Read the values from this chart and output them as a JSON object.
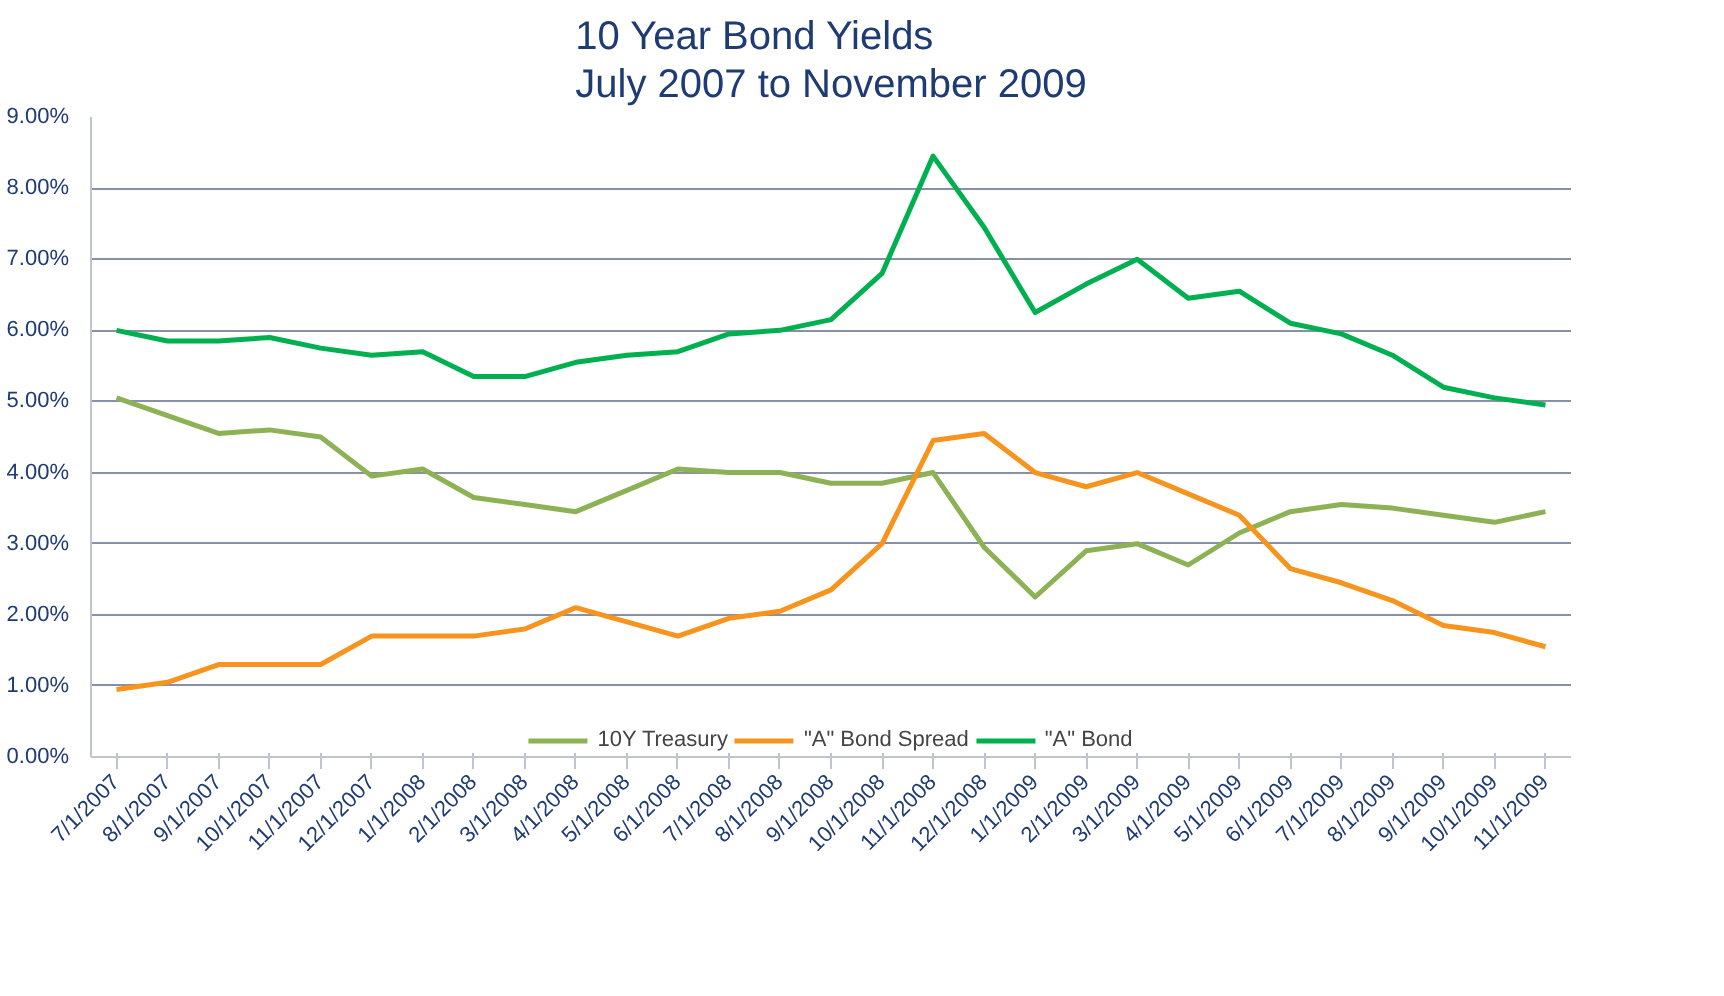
{
  "chart_data": {
    "type": "line",
    "title": "10 Year Bond Yields\nJuly 2007 to November 2009",
    "categories": [
      "7/1/2007",
      "8/1/2007",
      "9/1/2007",
      "10/1/2007",
      "11/1/2007",
      "12/1/2007",
      "1/1/2008",
      "2/1/2008",
      "3/1/2008",
      "4/1/2008",
      "5/1/2008",
      "6/1/2008",
      "7/1/2008",
      "8/1/2008",
      "9/1/2008",
      "10/1/2008",
      "11/1/2008",
      "12/1/2008",
      "1/1/2009",
      "2/1/2009",
      "3/1/2009",
      "4/1/2009",
      "5/1/2009",
      "6/1/2009",
      "7/1/2009",
      "8/1/2009",
      "9/1/2009",
      "10/1/2009",
      "11/1/2009"
    ],
    "series": [
      {
        "name": "10Y Treasury",
        "color": "#8db255",
        "values": [
          5.05,
          4.8,
          4.55,
          4.6,
          4.5,
          3.95,
          4.05,
          3.65,
          3.55,
          3.45,
          3.75,
          4.05,
          4.0,
          4.0,
          3.85,
          3.85,
          4.0,
          2.95,
          2.25,
          2.9,
          3.0,
          2.7,
          3.15,
          3.45,
          3.55,
          3.5,
          3.4,
          3.3,
          3.45
        ]
      },
      {
        "name": "\"A\" Bond Spread",
        "color": "#f7941e",
        "values": [
          0.95,
          1.05,
          1.3,
          1.3,
          1.3,
          1.7,
          1.7,
          1.7,
          1.8,
          2.1,
          1.9,
          1.7,
          1.95,
          2.05,
          2.35,
          3.0,
          4.45,
          4.55,
          4.0,
          3.8,
          4.0,
          3.7,
          3.4,
          2.65,
          2.45,
          2.2,
          1.85,
          1.75,
          1.55
        ]
      },
      {
        "name": "\"A\" Bond",
        "color": "#00b050",
        "values": [
          6.0,
          5.85,
          5.85,
          5.9,
          5.75,
          5.65,
          5.7,
          5.35,
          5.35,
          5.55,
          5.65,
          5.7,
          5.95,
          6.0,
          6.15,
          6.8,
          8.45,
          7.45,
          6.25,
          6.65,
          7.0,
          6.45,
          6.55,
          6.1,
          5.95,
          5.65,
          5.2,
          5.05,
          4.95
        ]
      }
    ],
    "ylim": [
      0,
      9
    ],
    "yticks": [
      {
        "value": 0,
        "label": "0.00%"
      },
      {
        "value": 1,
        "label": "1.00%"
      },
      {
        "value": 2,
        "label": "2.00%"
      },
      {
        "value": 3,
        "label": "3.00%"
      },
      {
        "value": 4,
        "label": "4.00%"
      },
      {
        "value": 5,
        "label": "5.00%"
      },
      {
        "value": 6,
        "label": "6.00%"
      },
      {
        "value": 7,
        "label": "7.00%"
      },
      {
        "value": 8,
        "label": "8.00%"
      },
      {
        "value": 9,
        "label": "9.00%"
      }
    ],
    "grid": "y",
    "legend": "bottom",
    "marker": "none",
    "line_style": "solid"
  }
}
